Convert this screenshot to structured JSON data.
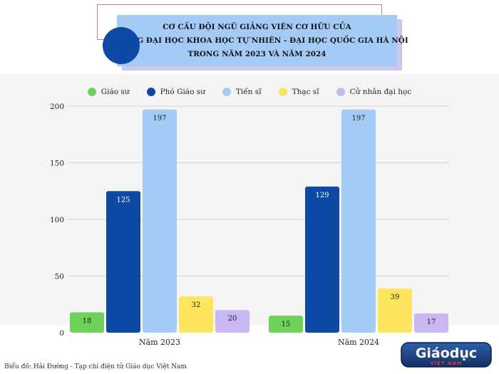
{
  "title": {
    "lines": [
      "CƠ CẤU ĐỘI NGŨ GIẢNG VIÊN CƠ HỮU CỦA",
      "TRƯỜNG ĐẠI HỌC KHOA HỌC TỰ NHIÊN - ĐẠI HỌC QUỐC GIA HÀ NỘI",
      "TRONG NĂM 2023 VÀ NĂM 2024"
    ]
  },
  "colors": {
    "title_box": "#a3cbf6",
    "title_circle": "#0e49a6",
    "plot_background": "#f4f4f4",
    "grid": "#d3d3d3"
  },
  "chart_data": {
    "type": "bar",
    "categories": [
      "Năm 2023",
      "Năm 2024"
    ],
    "series": [
      {
        "name": "Giáo sư",
        "color": "#6fd25b",
        "values": [
          18,
          15
        ]
      },
      {
        "name": "Phó Giáo sư",
        "color": "#0e49a6",
        "values": [
          125,
          129
        ]
      },
      {
        "name": "Tiến sĩ",
        "color": "#a3cbf6",
        "values": [
          197,
          197
        ]
      },
      {
        "name": "Thạc sĩ",
        "color": "#fde55d",
        "values": [
          32,
          39
        ]
      },
      {
        "name": "Cử nhân đại học",
        "color": "#c8b7f0",
        "values": [
          20,
          17
        ]
      }
    ],
    "ylim": [
      0,
      200
    ],
    "yticks": [
      0,
      50,
      100,
      150,
      200
    ],
    "grid": true,
    "legend_position": "top-center",
    "data_labels": true
  },
  "credit": "Biểu đồ: Hải Đường - Tạp chí điện tử Giáo dục Việt Nam",
  "logo": {
    "main": "Giáodục",
    "sub": "VIỆT NAM"
  }
}
